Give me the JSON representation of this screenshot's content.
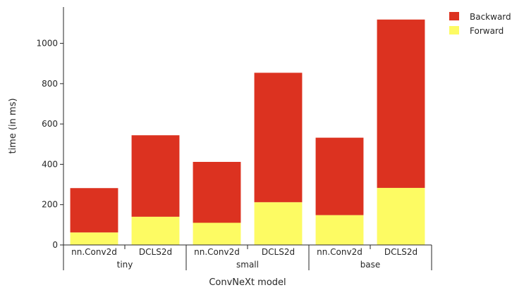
{
  "chart_data": {
    "type": "bar",
    "stacked": true,
    "categories": [
      "nn.Conv2d",
      "DCLS2d",
      "nn.Conv2d",
      "DCLS2d",
      "nn.Conv2d",
      "DCLS2d"
    ],
    "groups": [
      {
        "label": "tiny",
        "span": [
          0,
          1
        ]
      },
      {
        "label": "small",
        "span": [
          2,
          3
        ]
      },
      {
        "label": "base",
        "span": [
          4,
          5
        ]
      }
    ],
    "series": [
      {
        "name": "Forward",
        "color": "#fdfb63",
        "values": [
          62,
          140,
          110,
          212,
          148,
          283
        ]
      },
      {
        "name": "Backward",
        "color": "#dc3220",
        "values": [
          220,
          404,
          302,
          642,
          384,
          835
        ]
      }
    ],
    "title": "",
    "xlabel": "ConvNeXt model",
    "ylabel": "time (in ms)",
    "ylim": [
      0,
      1180
    ],
    "yticks": [
      0,
      200,
      400,
      600,
      800,
      1000
    ],
    "legend": {
      "placement": "top-right",
      "order": [
        "Backward",
        "Forward"
      ]
    },
    "grid": false
  }
}
